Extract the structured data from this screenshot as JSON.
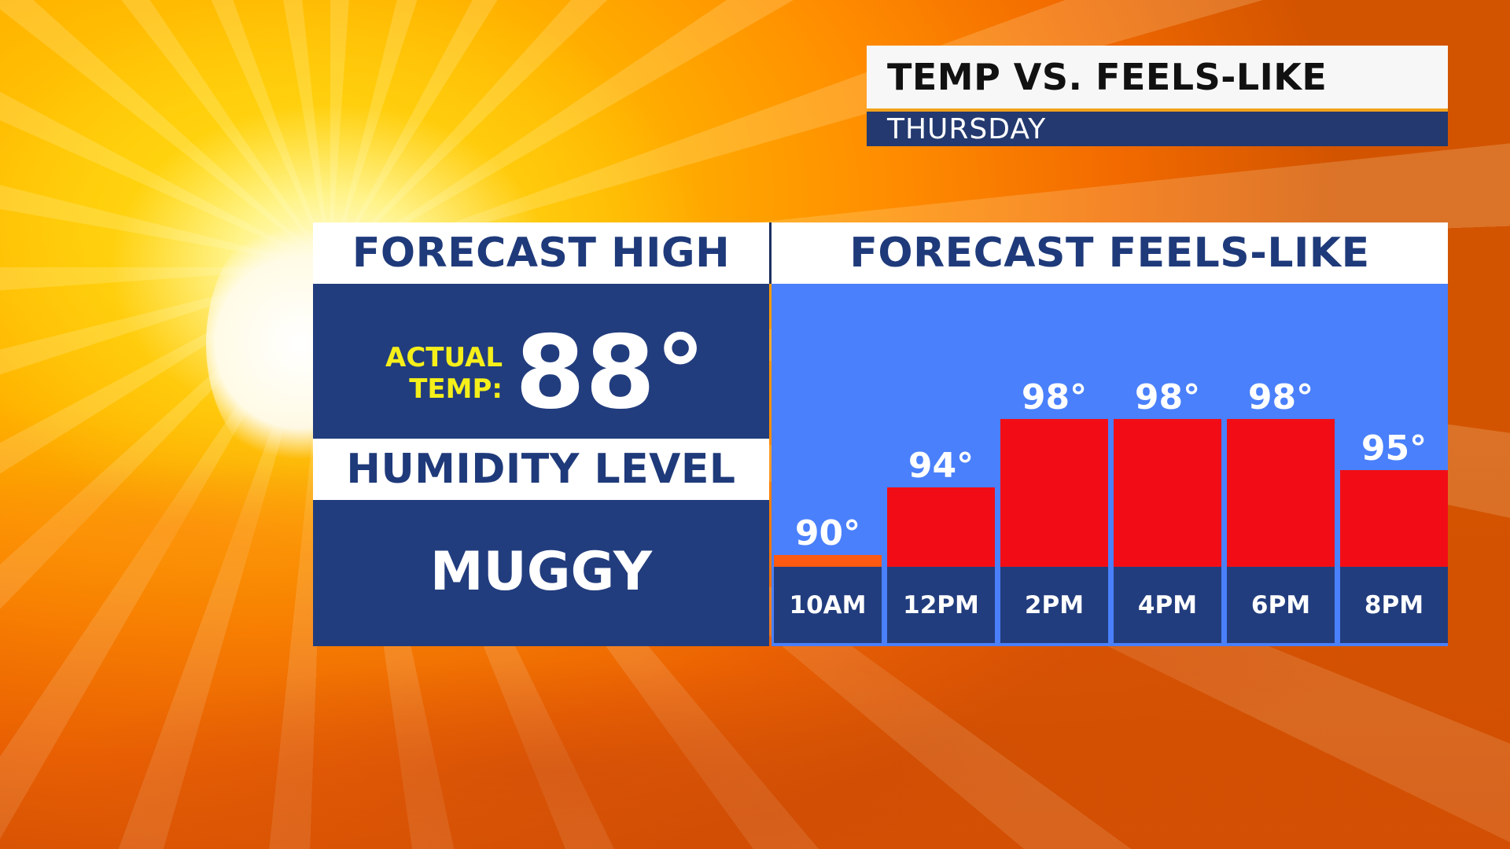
{
  "title": {
    "main": "TEMP VS. FEELS-LIKE",
    "day": "THURSDAY"
  },
  "left_panel": {
    "forecast_high_header": "FORECAST HIGH",
    "actual_label_line1": "ACTUAL",
    "actual_label_line2": "TEMP:",
    "actual_temp": "88°",
    "humidity_header": "HUMIDITY LEVEL",
    "humidity_value": "MUGGY"
  },
  "chart_data": {
    "type": "bar",
    "title": "FORECAST FEELS-LIKE",
    "categories": [
      "10AM",
      "12PM",
      "2PM",
      "4PM",
      "6PM",
      "8PM"
    ],
    "values": [
      90,
      94,
      98,
      98,
      98,
      95
    ],
    "labels": [
      "90°",
      "94°",
      "98°",
      "98°",
      "98°",
      "95°"
    ],
    "ylim": [
      89.3,
      106
    ],
    "bar_colors": [
      "#ff5a12",
      "#f20d16",
      "#f20d16",
      "#f20d16",
      "#f20d16",
      "#f20d16"
    ],
    "grid": false,
    "legend": "none"
  },
  "colors": {
    "navy": "#223d7e",
    "header_text": "#1f3a7a",
    "chart_background": "#4a80fb",
    "actual_label": "#f5ef1a",
    "title_accent": "#f2a21b"
  }
}
